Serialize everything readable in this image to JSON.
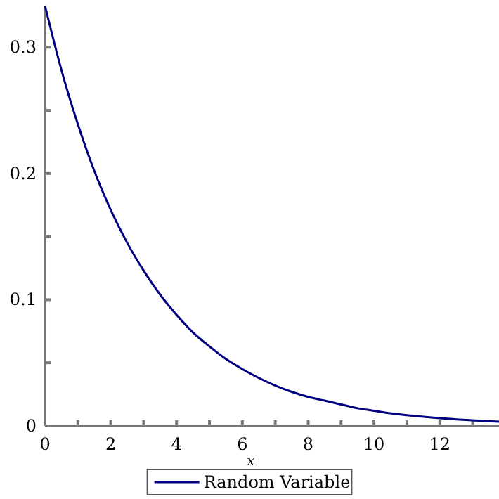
{
  "chart_data": {
    "type": "line",
    "xlabel": "x",
    "x": [
      0,
      0.5,
      1,
      1.5,
      2,
      2.5,
      3,
      3.5,
      4,
      4.5,
      5,
      5.5,
      6,
      6.5,
      7,
      7.5,
      8,
      8.5,
      9,
      9.5,
      10,
      10.5,
      11,
      11.5,
      12,
      12.5,
      13,
      13.5,
      13.8
    ],
    "series": [
      {
        "name": "Random Variable",
        "color": "#000080",
        "values": [
          0.333,
          0.282,
          0.239,
          0.202,
          0.171,
          0.145,
          0.123,
          0.104,
          0.088,
          0.074,
          0.063,
          0.053,
          0.045,
          0.038,
          0.032,
          0.027,
          0.023,
          0.02,
          0.017,
          0.014,
          0.012,
          0.01,
          0.0085,
          0.0072,
          0.0061,
          0.0052,
          0.0044,
          0.0037,
          0.0034
        ]
      }
    ],
    "xlim": [
      0,
      13.8
    ],
    "xticks": [
      0,
      {
        "value": 1,
        "label": null
      },
      2,
      {
        "value": 3,
        "label": null
      },
      4,
      {
        "value": 5,
        "label": null
      },
      6,
      {
        "value": 7,
        "label": null
      },
      8,
      {
        "value": 9,
        "label": null
      },
      10,
      {
        "value": 11,
        "label": null
      },
      12,
      {
        "value": 13,
        "label": null
      }
    ],
    "ylim": [
      0,
      0.333
    ],
    "yticks": [
      0,
      {
        "value": 0.05,
        "label": null
      },
      0.1,
      {
        "value": 0.15,
        "label": null
      },
      0.2,
      {
        "value": 0.25,
        "label": null
      },
      0.3
    ],
    "legend": "bottom",
    "grid": false,
    "marker": "none",
    "line_style": "solid"
  }
}
